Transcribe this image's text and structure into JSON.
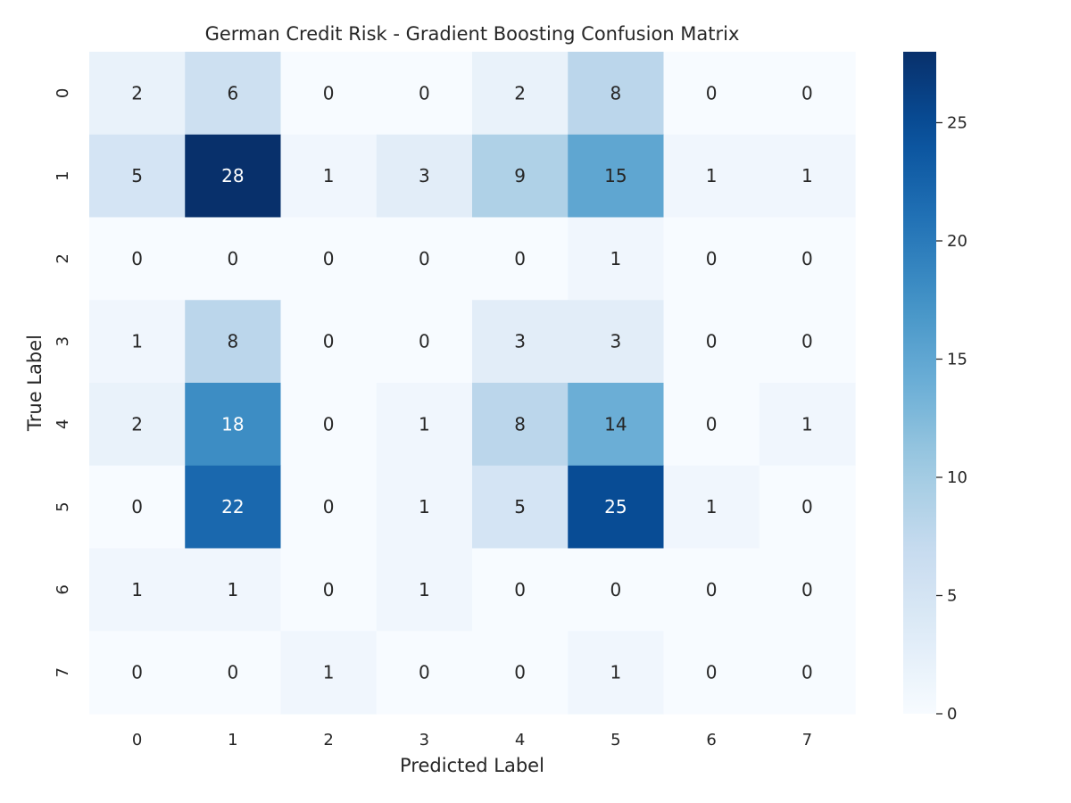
{
  "chart_data": {
    "type": "heatmap",
    "title": "German Credit Risk - Gradient Boosting Confusion Matrix",
    "xlabel": "Predicted Label",
    "ylabel": "True Label",
    "x_categories": [
      "0",
      "1",
      "2",
      "3",
      "4",
      "5",
      "6",
      "7"
    ],
    "y_categories": [
      "0",
      "1",
      "2",
      "3",
      "4",
      "5",
      "6",
      "7"
    ],
    "values": [
      [
        2,
        6,
        0,
        0,
        2,
        8,
        0,
        0
      ],
      [
        5,
        28,
        1,
        3,
        9,
        15,
        1,
        1
      ],
      [
        0,
        0,
        0,
        0,
        0,
        1,
        0,
        0
      ],
      [
        1,
        8,
        0,
        0,
        3,
        3,
        0,
        0
      ],
      [
        2,
        18,
        0,
        1,
        8,
        14,
        0,
        1
      ],
      [
        0,
        22,
        0,
        1,
        5,
        25,
        1,
        0
      ],
      [
        1,
        1,
        0,
        1,
        0,
        0,
        0,
        0
      ],
      [
        0,
        0,
        1,
        0,
        0,
        1,
        0,
        0
      ]
    ],
    "color_range": [
      0,
      28
    ],
    "colormap": "Blues",
    "colorbar_ticks": [
      "0",
      "5",
      "10",
      "15",
      "20",
      "25"
    ],
    "colorbar_tick_values": [
      0,
      5,
      10,
      15,
      20,
      25
    ],
    "grid": false,
    "legend": "colorbar-right"
  }
}
